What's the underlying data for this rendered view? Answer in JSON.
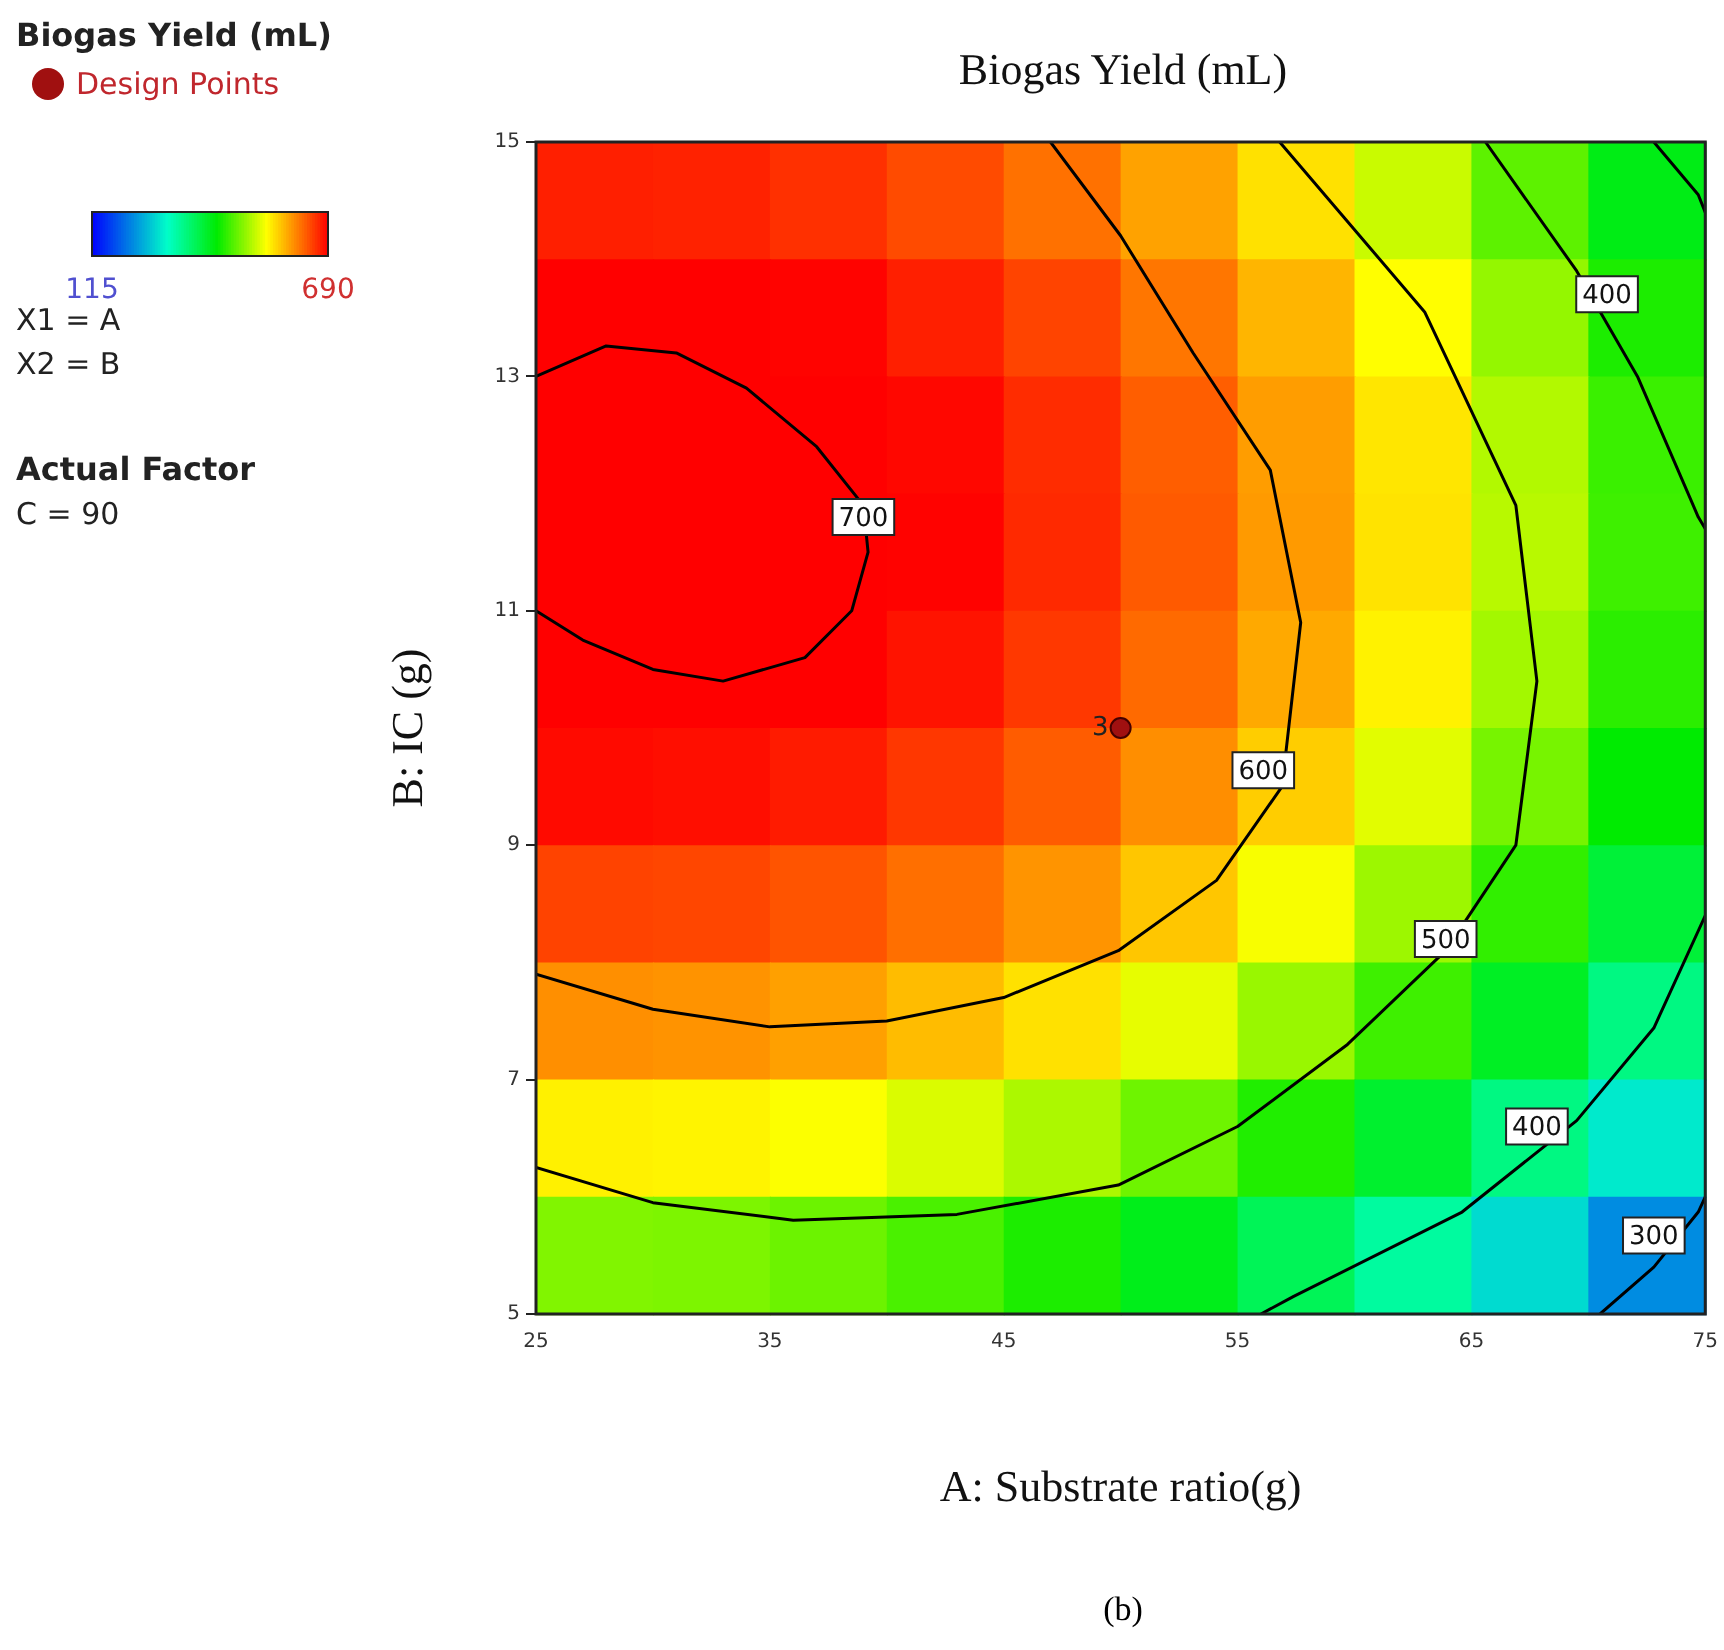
{
  "chart_data": {
    "type": "heatmap",
    "title": "Biogas Yield (mL)",
    "xlabel": "A: Substrate ratio(g)",
    "ylabel": "B: IC (g)",
    "legend_title": "Biogas Yield (mL)",
    "legend": "top left",
    "xlim": [
      25,
      75
    ],
    "ylim": [
      5,
      15
    ],
    "xticks": [
      25,
      35,
      45,
      55,
      65,
      75
    ],
    "yticks": [
      5,
      7,
      9,
      11,
      13,
      15
    ],
    "clim": [
      115,
      690
    ],
    "cticks": [
      115,
      690
    ],
    "x": [
      27.5,
      32.5,
      37.5,
      42.5,
      47.5,
      52.5,
      57.5,
      62.5,
      67.5,
      72.5
    ],
    "y": [
      14.5,
      13.5,
      12.5,
      11.5,
      10.5,
      9.5,
      8.5,
      7.5,
      6.5,
      5.5
    ],
    "cells": [
      [
        672,
        670,
        662,
        646,
        624,
        595,
        558,
        515,
        464,
        407
      ],
      [
        698,
        696,
        688,
        672,
        650,
        621,
        584,
        541,
        490,
        433
      ],
      [
        712,
        710,
        702,
        686,
        664,
        635,
        598,
        555,
        504,
        447
      ],
      [
        714,
        712,
        704,
        689,
        666,
        637,
        600,
        557,
        507,
        449
      ],
      [
        705,
        703,
        695,
        679,
        657,
        628,
        591,
        548,
        497,
        440
      ],
      [
        684,
        682,
        674,
        658,
        636,
        607,
        570,
        527,
        476,
        419
      ],
      [
        651,
        649,
        641,
        625,
        603,
        574,
        537,
        494,
        443,
        386
      ],
      [
        606,
        604,
        596,
        580,
        558,
        529,
        492,
        449,
        398,
        341
      ],
      [
        549,
        547,
        539,
        523,
        501,
        472,
        435,
        392,
        341,
        284
      ],
      [
        481,
        479,
        471,
        455,
        433,
        404,
        367,
        324,
        273,
        216
      ]
    ],
    "series": [
      {
        "type": "line",
        "color": "#000000",
        "x": [
          25,
          28,
          31,
          34,
          37,
          39,
          39.2,
          38.5,
          36.5,
          33,
          30,
          27,
          25
        ],
        "values": [
          13.0,
          13.26,
          13.2,
          12.9,
          12.4,
          11.9,
          11.5,
          11.0,
          10.6,
          10.4,
          10.5,
          10.75,
          11.0
        ]
      },
      {
        "type": "line",
        "color": "#000000",
        "x": [
          47,
          50,
          53.1,
          56.4,
          57.7,
          56.9,
          54.1,
          49.9,
          45,
          40,
          35,
          30,
          25
        ],
        "values": [
          15,
          14.2,
          13.2,
          12.2,
          10.9,
          9.5,
          8.7,
          8.1,
          7.7,
          7.5,
          7.45,
          7.6,
          7.9
        ]
      },
      {
        "type": "line",
        "color": "#000000",
        "x": [
          56.8,
          63,
          66.9,
          67.8,
          66.9,
          63.9,
          59.7,
          55,
          49.9,
          43,
          36,
          30,
          25
        ],
        "values": [
          15,
          13.55,
          11.9,
          10.4,
          9.0,
          8.1,
          7.3,
          6.6,
          6.1,
          5.85,
          5.8,
          5.95,
          6.25
        ]
      },
      {
        "type": "line",
        "color": "#000000",
        "x": [
          65.6,
          69.5,
          72.1,
          74.7,
          75
        ],
        "values": [
          15,
          13.9,
          13.0,
          11.8,
          11.7
        ]
      },
      {
        "type": "line",
        "color": "#000000",
        "x": [
          75,
          72.8,
          69.5,
          64.6,
          57.4,
          56
        ],
        "values": [
          8.4,
          7.44,
          6.65,
          5.87,
          5.15,
          5
        ]
      },
      {
        "type": "line",
        "color": "#000000",
        "x": [
          70.5,
          72.8,
          74.7,
          75
        ],
        "values": [
          5,
          5.4,
          5.87,
          6.0
        ]
      },
      {
        "type": "line",
        "color": "#000000",
        "x": [
          72.8,
          74.7,
          75
        ],
        "values": [
          15,
          14.55,
          14.4
        ]
      },
      {
        "type": "scatter",
        "name": "Design Points",
        "color": "#a01010",
        "marker": "circle",
        "x": [
          50
        ],
        "values": [
          10
        ]
      }
    ],
    "annotations": [
      {
        "text": "700",
        "x": 39,
        "y": 11.8
      },
      {
        "text": "600",
        "x": 56.1,
        "y": 9.64
      },
      {
        "text": "500",
        "x": 63.9,
        "y": 8.2
      },
      {
        "text": "400",
        "x": 70.8,
        "y": 13.7
      },
      {
        "text": "400",
        "x": 67.8,
        "y": 6.6
      },
      {
        "text": "300",
        "x": 72.8,
        "y": 5.67
      },
      {
        "text": "3",
        "x": 50,
        "y": 10
      },
      "X1 = A",
      "X2 = B",
      "Actual Factor",
      "C = 90",
      "(b)"
    ]
  }
}
